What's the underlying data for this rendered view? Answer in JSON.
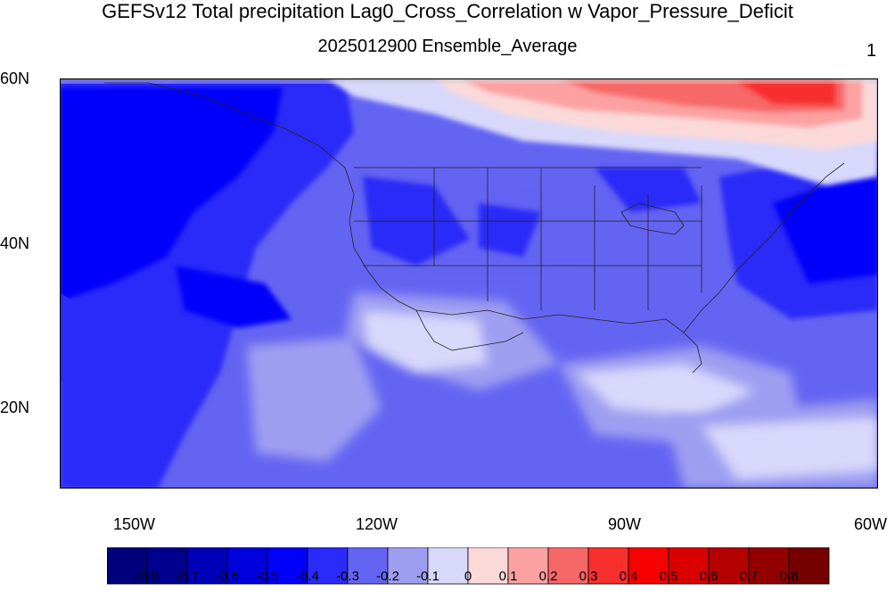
{
  "title": "GEFSv12 Total precipitation Lag0_Cross_Correlation w Vapor_Pressure_Deficit",
  "subtitle": "2025012900 Ensemble_Average",
  "corner_label": "1",
  "lat_labels": [
    "60N",
    "40N",
    "20N"
  ],
  "lon_labels": [
    "150W",
    "120W",
    "90W",
    "60W"
  ],
  "colorbar": {
    "labels": [
      "-0.8",
      "-0.7",
      "-0.6",
      "-0.5",
      "-0.4",
      "-0.3",
      "-0.2",
      "-0.1",
      "0",
      "0.1",
      "0.2",
      "0.3",
      "0.4",
      "0.5",
      "0.6",
      "0.7",
      "0.8"
    ],
    "colors": [
      "#00007d",
      "#00008f",
      "#0000b9",
      "#0000dd",
      "#0000fb",
      "#2a2af9",
      "#6464f3",
      "#9e9ef1",
      "#d8d8fb",
      "#fbd9d9",
      "#fba1a1",
      "#f76767",
      "#f72f2f",
      "#f70000",
      "#d90000",
      "#b50000",
      "#930000",
      "#750000"
    ]
  },
  "map": {
    "region": "Contiguous United States and surrounding Pacific/Atlantic, 10N-60N, 160W-60W",
    "field": "Lag0 cross-correlation of total precipitation with vapor pressure deficit",
    "dominant_pattern": "Negative correlations (blue) over most of domain; strongest negative over NE Pacific and western Atlantic; positive (red) over central/eastern Canada near 55-60N"
  }
}
